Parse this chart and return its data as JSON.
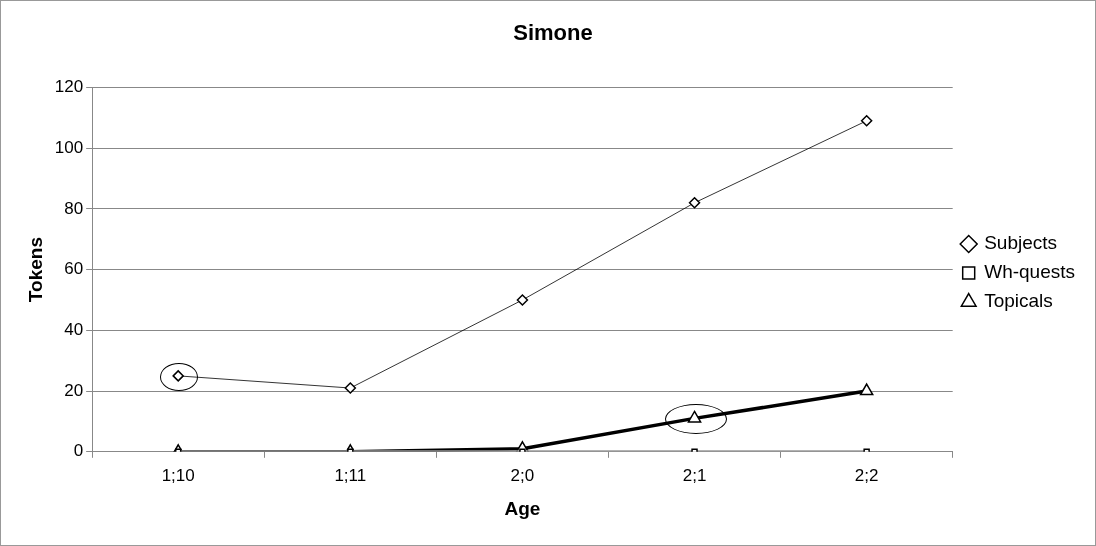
{
  "chart_data": {
    "type": "line",
    "title": "Simone",
    "xlabel": "Age",
    "ylabel": "Tokens",
    "categories": [
      "1;10",
      "1;11",
      "2;0",
      "2;1",
      "2;2"
    ],
    "series": [
      {
        "name": "Subjects",
        "color": "#000000",
        "marker": "diamond",
        "values": [
          25,
          21,
          50,
          82,
          109
        ]
      },
      {
        "name": "Wh-quests",
        "color": "#999999",
        "marker": "square",
        "values": [
          0,
          0,
          0,
          0,
          0
        ]
      },
      {
        "name": "Topicals",
        "color": "#000000",
        "marker": "triangle",
        "values": [
          0,
          0,
          1,
          11,
          20
        ]
      }
    ],
    "ylim": [
      0,
      120
    ],
    "yticks": [
      0,
      20,
      40,
      60,
      80,
      100,
      120
    ],
    "grid": "y",
    "legend": "right"
  }
}
